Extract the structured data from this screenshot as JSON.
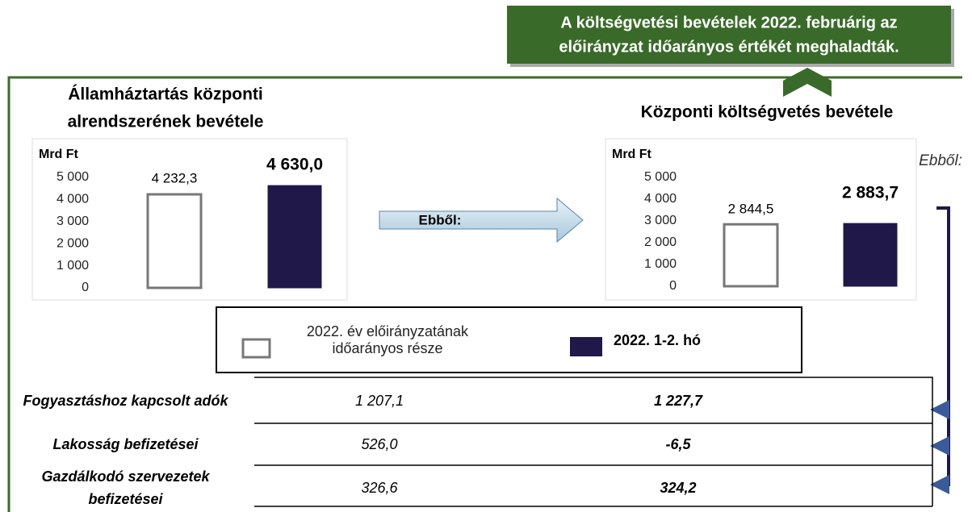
{
  "banner": [
    "A költségvetési  bevételek  2022. februárig az",
    "előirányzat időarányos értékét meghaladták."
  ],
  "arrow_label": "Ebből:",
  "side_label": "Ebből:",
  "chart_data": [
    {
      "type": "bar",
      "title": [
        "Államháztartás központi",
        "alrendszerének bevétele"
      ],
      "ylabel": "Mrd Ft",
      "series": [
        {
          "name": "2022. év előirányzatának időarányos része",
          "color": "#ffffff",
          "values": [
            4232.3
          ],
          "value_labels": [
            "4 232,3"
          ]
        },
        {
          "name": "2022. 1-2. hó",
          "color": "#201848",
          "values": [
            4630.0
          ],
          "value_labels": [
            "4 630,0"
          ]
        }
      ],
      "ylim": [
        0,
        5000
      ],
      "yticks": [
        0,
        {
          "value": 1000,
          "label": "1 000"
        },
        {
          "value": 2000,
          "label": "2 000"
        },
        {
          "value": 3000,
          "label": "3 000"
        },
        {
          "value": 4000,
          "label": "4 000"
        },
        {
          "value": 5000,
          "label": "5 000"
        }
      ]
    },
    {
      "type": "bar",
      "title": [
        "Központi költségvetés bevétele"
      ],
      "ylabel": "Mrd Ft",
      "series": [
        {
          "name": "2022. év előirányzatának időarányos része",
          "color": "#ffffff",
          "values": [
            2844.5
          ],
          "value_labels": [
            "2 844,5"
          ]
        },
        {
          "name": "2022. 1-2. hó",
          "color": "#201848",
          "values": [
            2883.7
          ],
          "value_labels": [
            "2 883,7"
          ]
        }
      ],
      "ylim": [
        0,
        5000
      ],
      "yticks": [
        0,
        {
          "value": 1000,
          "label": "1 000"
        },
        {
          "value": 2000,
          "label": "2 000"
        },
        {
          "value": 3000,
          "label": "3 000"
        },
        {
          "value": 4000,
          "label": "4 000"
        },
        {
          "value": 5000,
          "label": "5 000"
        }
      ]
    }
  ],
  "table": {
    "rows": [
      [
        "Fogyasztáshoz kapcsolt adók",
        "1 207,1",
        "1 227,7"
      ],
      [
        "Lakosság befizetései",
        "526,0",
        "-6,5"
      ],
      [
        "Gazdálkodó szervezetek befizetései",
        "326,6",
        "324,2"
      ]
    ]
  }
}
